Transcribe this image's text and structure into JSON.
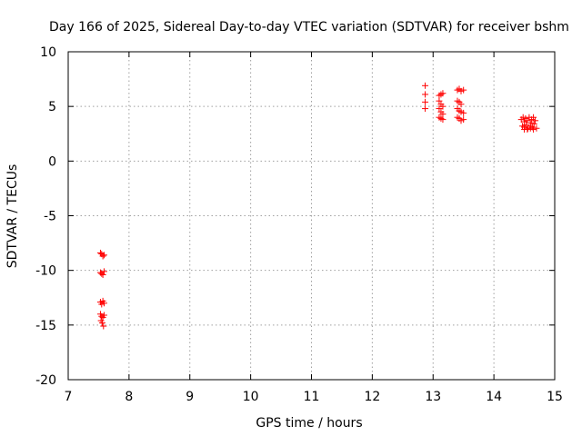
{
  "chart_data": {
    "type": "scatter",
    "title": "Day 166 of 2025, Sidereal Day-to-day VTEC variation (SDTVAR) for receiver bshm",
    "xlabel": "GPS time / hours",
    "ylabel": "SDTVAR / TECUs",
    "xlim": [
      7,
      15
    ],
    "ylim": [
      -20,
      10
    ],
    "xticks": [
      7,
      8,
      9,
      10,
      11,
      12,
      13,
      14,
      15
    ],
    "yticks": [
      -20,
      -15,
      -10,
      -5,
      0,
      5,
      10
    ],
    "grid": true,
    "marker": "+",
    "series": [
      {
        "name": "SDTVAR",
        "color": "#ff0000",
        "points": [
          [
            7.53,
            -8.4
          ],
          [
            7.55,
            -8.5
          ],
          [
            7.57,
            -8.7
          ],
          [
            7.59,
            -8.6
          ],
          [
            7.53,
            -10.2
          ],
          [
            7.55,
            -10.3
          ],
          [
            7.57,
            -10.4
          ],
          [
            7.59,
            -10.1
          ],
          [
            7.53,
            -12.9
          ],
          [
            7.55,
            -13.1
          ],
          [
            7.57,
            -12.8
          ],
          [
            7.59,
            -13.0
          ],
          [
            7.53,
            -14.0
          ],
          [
            7.55,
            -14.2
          ],
          [
            7.57,
            -14.3
          ],
          [
            7.59,
            -14.1
          ],
          [
            7.54,
            -14.6
          ],
          [
            7.56,
            -14.8
          ],
          [
            7.58,
            -15.1
          ],
          [
            12.87,
            6.9
          ],
          [
            12.87,
            6.1
          ],
          [
            12.87,
            5.4
          ],
          [
            12.87,
            4.8
          ],
          [
            13.1,
            6.0
          ],
          [
            13.13,
            6.1
          ],
          [
            13.16,
            6.2
          ],
          [
            13.1,
            5.5
          ],
          [
            13.13,
            5.2
          ],
          [
            13.16,
            5.0
          ],
          [
            13.1,
            4.8
          ],
          [
            13.13,
            4.5
          ],
          [
            13.16,
            4.3
          ],
          [
            13.1,
            4.0
          ],
          [
            13.13,
            3.9
          ],
          [
            13.16,
            3.8
          ],
          [
            13.4,
            6.5
          ],
          [
            13.43,
            6.6
          ],
          [
            13.46,
            6.4
          ],
          [
            13.5,
            6.5
          ],
          [
            13.4,
            5.5
          ],
          [
            13.43,
            5.4
          ],
          [
            13.46,
            5.2
          ],
          [
            13.4,
            4.8
          ],
          [
            13.43,
            4.6
          ],
          [
            13.46,
            4.5
          ],
          [
            13.5,
            4.4
          ],
          [
            13.4,
            4.0
          ],
          [
            13.43,
            3.9
          ],
          [
            13.46,
            3.7
          ],
          [
            13.5,
            3.8
          ],
          [
            14.45,
            3.8
          ],
          [
            14.48,
            4.0
          ],
          [
            14.5,
            3.6
          ],
          [
            14.52,
            3.9
          ],
          [
            14.55,
            3.7
          ],
          [
            14.58,
            4.0
          ],
          [
            14.6,
            3.5
          ],
          [
            14.62,
            3.8
          ],
          [
            14.65,
            4.0
          ],
          [
            14.68,
            3.7
          ],
          [
            14.47,
            3.2
          ],
          [
            14.5,
            3.1
          ],
          [
            14.53,
            3.3
          ],
          [
            14.56,
            3.0
          ],
          [
            14.6,
            3.2
          ],
          [
            14.63,
            3.1
          ],
          [
            14.66,
            3.4
          ],
          [
            14.7,
            3.0
          ],
          [
            14.5,
            2.9
          ],
          [
            14.55,
            2.9
          ],
          [
            14.6,
            3.0
          ],
          [
            14.65,
            2.9
          ]
        ]
      }
    ]
  }
}
